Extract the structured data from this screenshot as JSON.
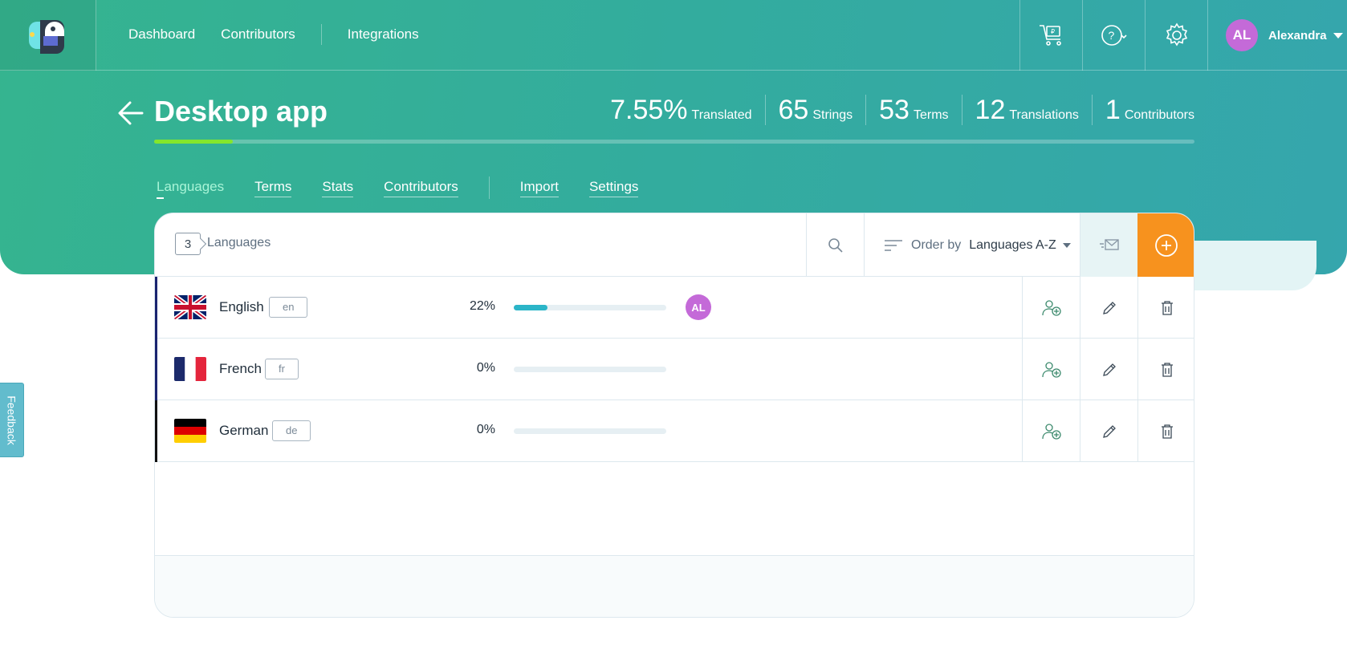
{
  "nav": {
    "dashboard": "Dashboard",
    "contributors": "Contributors",
    "integrations": "Integrations"
  },
  "user": {
    "initials": "AL",
    "name": "Alexandra"
  },
  "project": {
    "title": "Desktop app",
    "progress_percent": 7.55
  },
  "stats": [
    {
      "value": "7.55%",
      "label": "Translated"
    },
    {
      "value": "65",
      "label": "Strings"
    },
    {
      "value": "53",
      "label": "Terms"
    },
    {
      "value": "12",
      "label": "Translations"
    },
    {
      "value": "1",
      "label": "Contributors"
    }
  ],
  "tabs": {
    "languages": "Languages",
    "terms": "Terms",
    "stats": "Stats",
    "contributors": "Contributors",
    "import": "Import",
    "settings": "Settings"
  },
  "toolbar": {
    "count": "3",
    "count_label": "Languages",
    "order_label": "Order by",
    "order_value": "Languages A-Z"
  },
  "languages": [
    {
      "name": "English",
      "code": "en",
      "percent_text": "22%",
      "progress": 22,
      "contributor": "AL",
      "marker_color": "#1a2470"
    },
    {
      "name": "French",
      "code": "fr",
      "percent_text": "0%",
      "progress": 0,
      "marker_color": "#1a2470"
    },
    {
      "name": "German",
      "code": "de",
      "percent_text": "0%",
      "progress": 0,
      "marker_color": "#111111"
    }
  ],
  "feedback": "Feedback",
  "colors": {
    "accent_orange": "#f7921e",
    "progress_green": "#84e62c",
    "progress_teal": "#2bb5c8",
    "avatar_purple": "#c46ad8"
  }
}
